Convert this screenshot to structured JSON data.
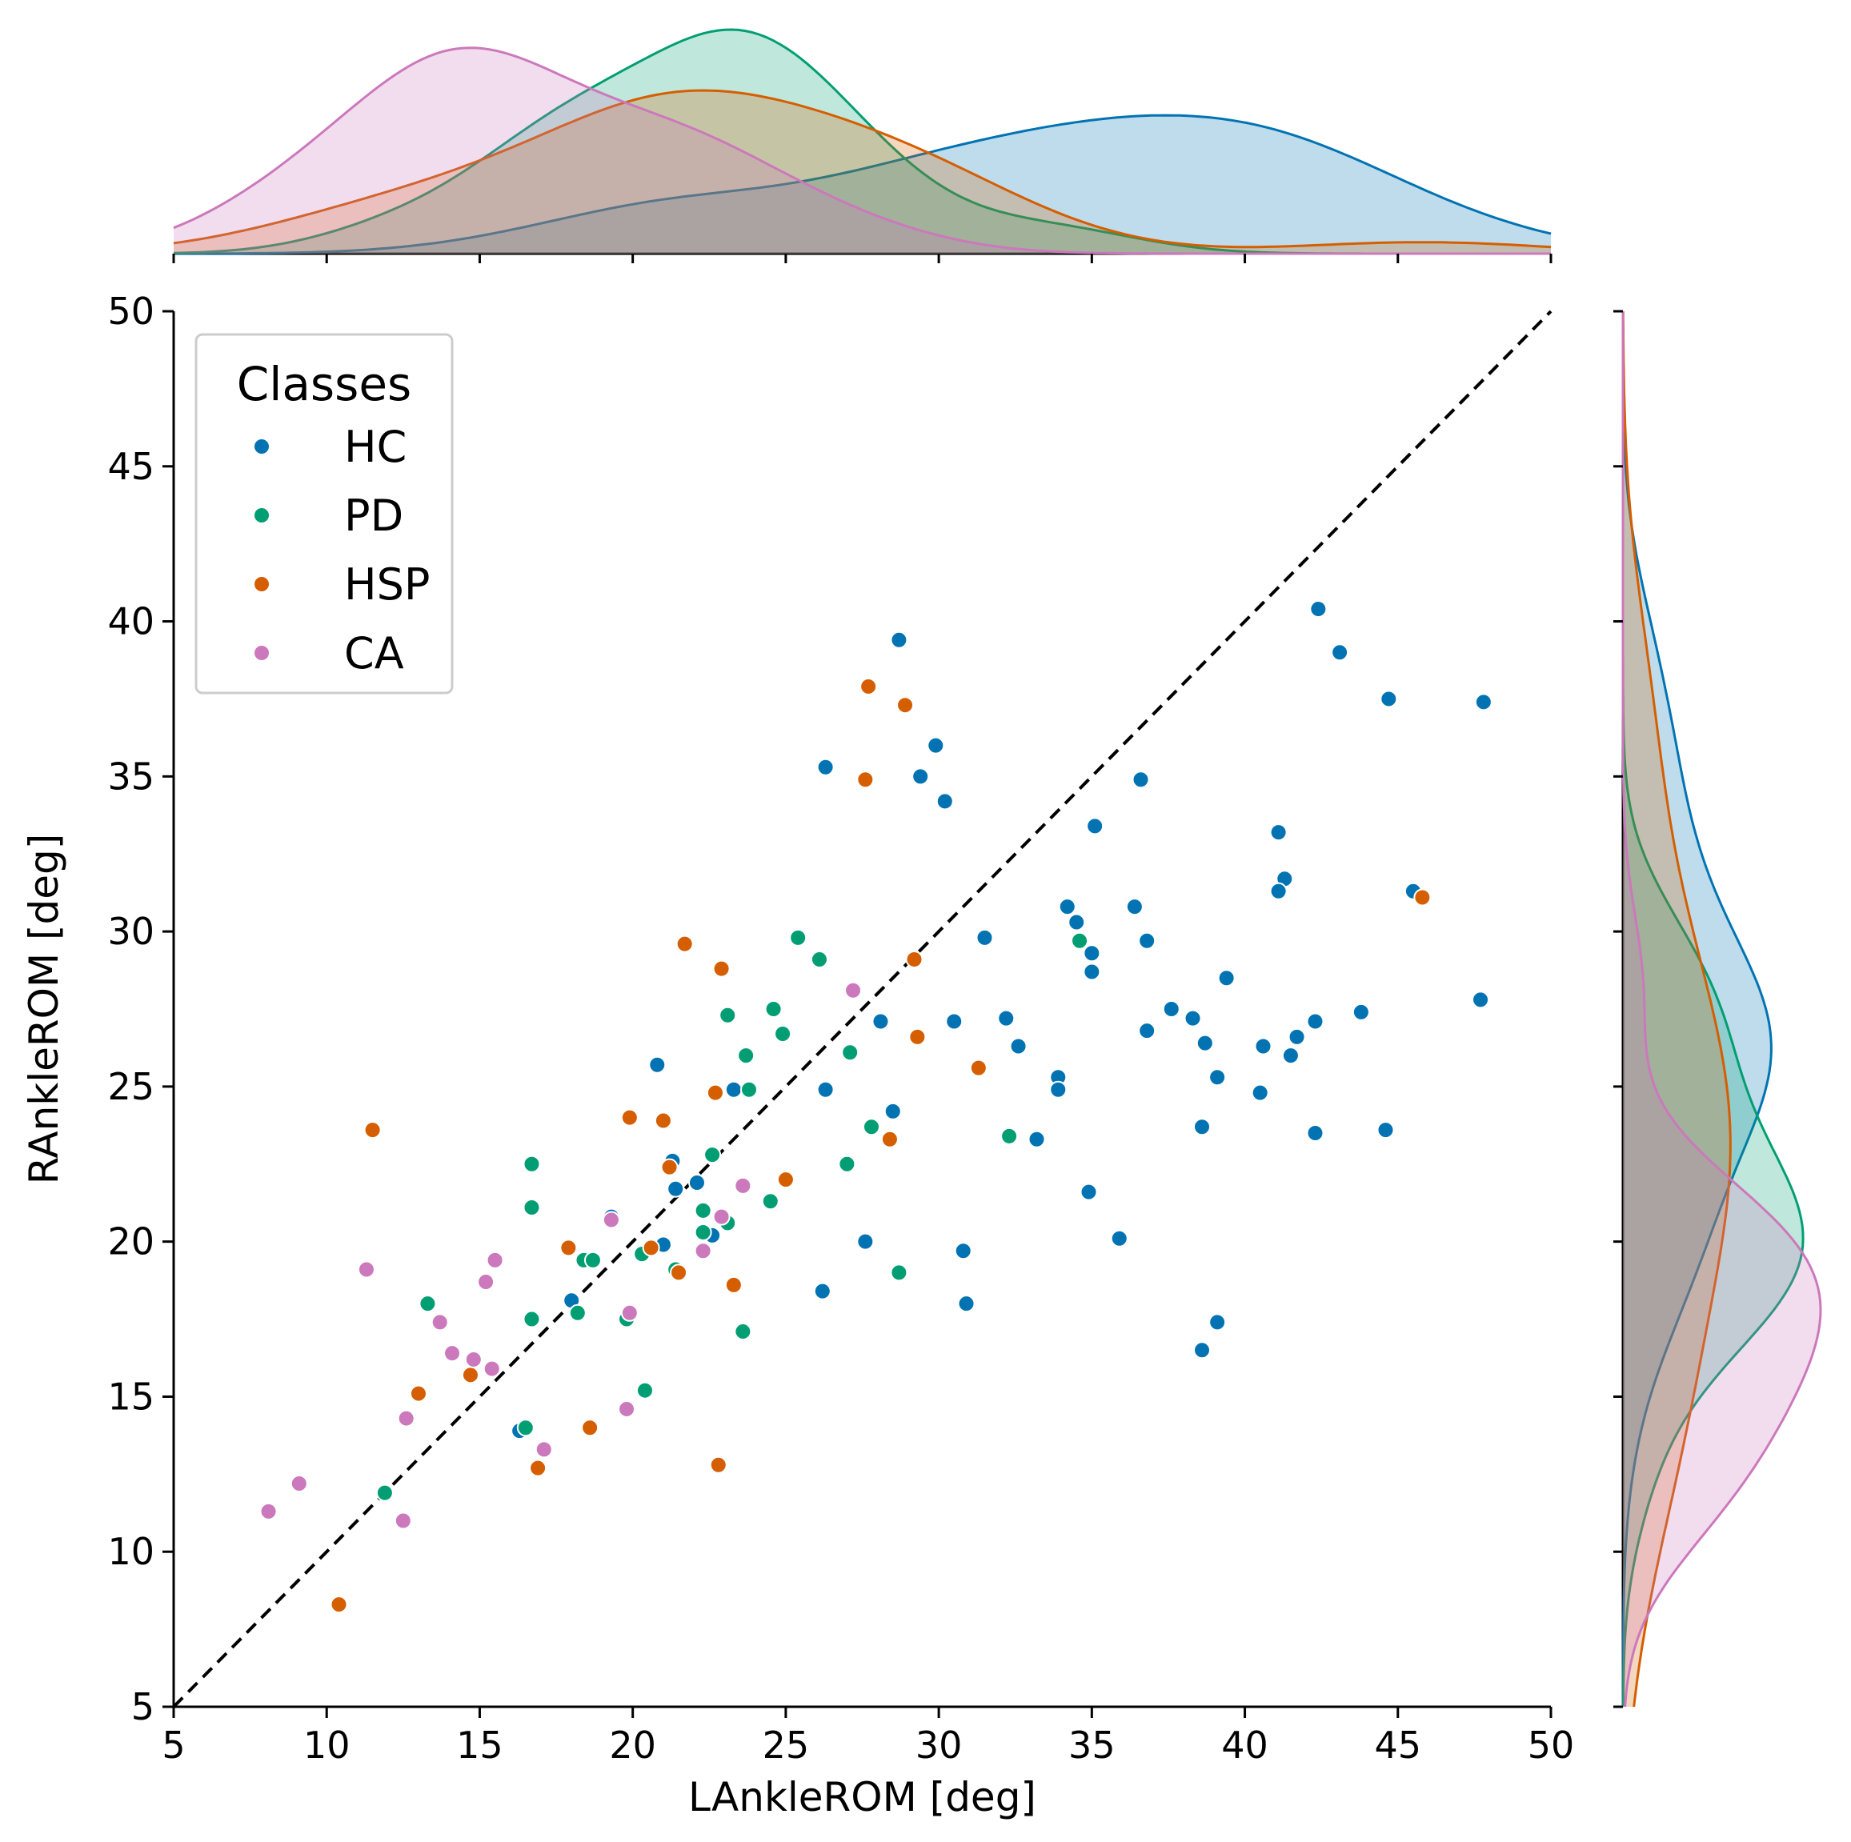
{
  "chart_data": {
    "type": "scatter",
    "subtype": "jointplot",
    "xlabel": "LAnkleROM [deg]",
    "ylabel": "RAnkleROM [deg]",
    "xlim": [
      5,
      50
    ],
    "ylim": [
      5,
      50
    ],
    "xticks": [
      "5",
      "10",
      "15",
      "20",
      "25",
      "30",
      "35",
      "40",
      "45",
      "50"
    ],
    "yticks": [
      "5",
      "10",
      "15",
      "20",
      "25",
      "30",
      "35",
      "40",
      "45",
      "50"
    ],
    "reference_line": {
      "label": "identity",
      "from": [
        5,
        5
      ],
      "to": [
        50,
        50
      ],
      "style": "dashed",
      "color": "#000000"
    },
    "legend": {
      "title": "Classes",
      "position": "top-left"
    },
    "series": [
      {
        "name": "HC",
        "color": "#0173b2",
        "points": [
          [
            28.7,
            39.4
          ],
          [
            42.4,
            40.4
          ],
          [
            43.1,
            39.0
          ],
          [
            44.7,
            37.5
          ],
          [
            47.8,
            37.4
          ],
          [
            26.3,
            35.3
          ],
          [
            29.9,
            36.0
          ],
          [
            29.4,
            35.0
          ],
          [
            30.2,
            34.2
          ],
          [
            36.6,
            34.9
          ],
          [
            35.1,
            33.4
          ],
          [
            41.1,
            33.2
          ],
          [
            41.3,
            31.7
          ],
          [
            41.1,
            31.3
          ],
          [
            45.5,
            31.3
          ],
          [
            34.2,
            30.8
          ],
          [
            36.4,
            30.8
          ],
          [
            34.5,
            30.3
          ],
          [
            31.5,
            29.8
          ],
          [
            36.8,
            29.7
          ],
          [
            35.0,
            29.3
          ],
          [
            35.0,
            28.7
          ],
          [
            39.4,
            28.5
          ],
          [
            47.7,
            27.8
          ],
          [
            37.6,
            27.5
          ],
          [
            43.8,
            27.4
          ],
          [
            38.3,
            27.2
          ],
          [
            32.2,
            27.2
          ],
          [
            30.5,
            27.1
          ],
          [
            28.1,
            27.1
          ],
          [
            42.3,
            27.1
          ],
          [
            36.8,
            26.8
          ],
          [
            41.7,
            26.6
          ],
          [
            38.7,
            26.4
          ],
          [
            32.6,
            26.3
          ],
          [
            40.6,
            26.3
          ],
          [
            41.5,
            26.0
          ],
          [
            20.8,
            25.7
          ],
          [
            33.9,
            25.3
          ],
          [
            39.1,
            25.3
          ],
          [
            23.3,
            24.9
          ],
          [
            26.3,
            24.9
          ],
          [
            33.9,
            24.9
          ],
          [
            40.5,
            24.8
          ],
          [
            28.5,
            24.2
          ],
          [
            38.6,
            23.7
          ],
          [
            44.6,
            23.6
          ],
          [
            42.3,
            23.5
          ],
          [
            33.2,
            23.3
          ],
          [
            21.3,
            22.6
          ],
          [
            22.1,
            21.9
          ],
          [
            21.4,
            21.7
          ],
          [
            34.9,
            21.6
          ],
          [
            19.3,
            20.8
          ],
          [
            22.6,
            20.2
          ],
          [
            35.9,
            20.1
          ],
          [
            27.6,
            20.0
          ],
          [
            21.0,
            19.9
          ],
          [
            30.8,
            19.7
          ],
          [
            26.2,
            18.4
          ],
          [
            18.0,
            18.1
          ],
          [
            30.9,
            18.0
          ],
          [
            39.1,
            17.4
          ],
          [
            38.6,
            16.5
          ],
          [
            16.3,
            13.9
          ]
        ]
      },
      {
        "name": "PD",
        "color": "#029e73",
        "points": [
          [
            25.4,
            29.8
          ],
          [
            34.6,
            29.7
          ],
          [
            26.1,
            29.1
          ],
          [
            23.1,
            27.3
          ],
          [
            24.6,
            27.5
          ],
          [
            24.9,
            26.7
          ],
          [
            27.1,
            26.1
          ],
          [
            23.7,
            26.0
          ],
          [
            23.8,
            24.9
          ],
          [
            27.8,
            23.7
          ],
          [
            32.3,
            23.4
          ],
          [
            22.6,
            22.8
          ],
          [
            16.7,
            22.5
          ],
          [
            27.0,
            22.5
          ],
          [
            24.5,
            21.3
          ],
          [
            16.7,
            21.1
          ],
          [
            22.3,
            21.0
          ],
          [
            23.1,
            20.6
          ],
          [
            22.3,
            20.3
          ],
          [
            20.3,
            19.6
          ],
          [
            18.4,
            19.4
          ],
          [
            18.7,
            19.4
          ],
          [
            21.4,
            19.1
          ],
          [
            28.7,
            19.0
          ],
          [
            16.7,
            17.5
          ],
          [
            18.2,
            17.7
          ],
          [
            19.8,
            17.5
          ],
          [
            23.6,
            17.1
          ],
          [
            13.3,
            18.0
          ],
          [
            20.4,
            15.2
          ],
          [
            16.5,
            14.0
          ],
          [
            11.9,
            11.9
          ]
        ]
      },
      {
        "name": "HSP",
        "color": "#d55e00",
        "points": [
          [
            27.7,
            37.9
          ],
          [
            28.9,
            37.3
          ],
          [
            27.6,
            34.9
          ],
          [
            45.8,
            31.1
          ],
          [
            21.7,
            29.6
          ],
          [
            29.2,
            29.1
          ],
          [
            22.9,
            28.8
          ],
          [
            29.3,
            26.6
          ],
          [
            31.3,
            25.6
          ],
          [
            22.7,
            24.8
          ],
          [
            19.9,
            24.0
          ],
          [
            21.0,
            23.9
          ],
          [
            11.5,
            23.6
          ],
          [
            28.4,
            23.3
          ],
          [
            21.2,
            22.4
          ],
          [
            25.0,
            22.0
          ],
          [
            17.9,
            19.8
          ],
          [
            20.6,
            19.8
          ],
          [
            21.5,
            19.0
          ],
          [
            23.3,
            18.6
          ],
          [
            14.7,
            15.7
          ],
          [
            13.0,
            15.1
          ],
          [
            18.6,
            14.0
          ],
          [
            16.9,
            12.7
          ],
          [
            22.8,
            12.8
          ],
          [
            10.4,
            8.3
          ]
        ]
      },
      {
        "name": "CA",
        "color": "#cc78bc",
        "points": [
          [
            27.2,
            28.1
          ],
          [
            23.6,
            21.8
          ],
          [
            22.9,
            20.8
          ],
          [
            19.3,
            20.7
          ],
          [
            22.3,
            19.7
          ],
          [
            15.5,
            19.4
          ],
          [
            11.3,
            19.1
          ],
          [
            15.2,
            18.7
          ],
          [
            19.9,
            17.7
          ],
          [
            13.7,
            17.4
          ],
          [
            14.1,
            16.4
          ],
          [
            14.8,
            16.2
          ],
          [
            15.4,
            15.9
          ],
          [
            19.8,
            14.6
          ],
          [
            12.6,
            14.3
          ],
          [
            17.1,
            13.3
          ],
          [
            12.5,
            11.0
          ],
          [
            9.1,
            12.2
          ],
          [
            8.1,
            11.3
          ]
        ]
      }
    ]
  }
}
